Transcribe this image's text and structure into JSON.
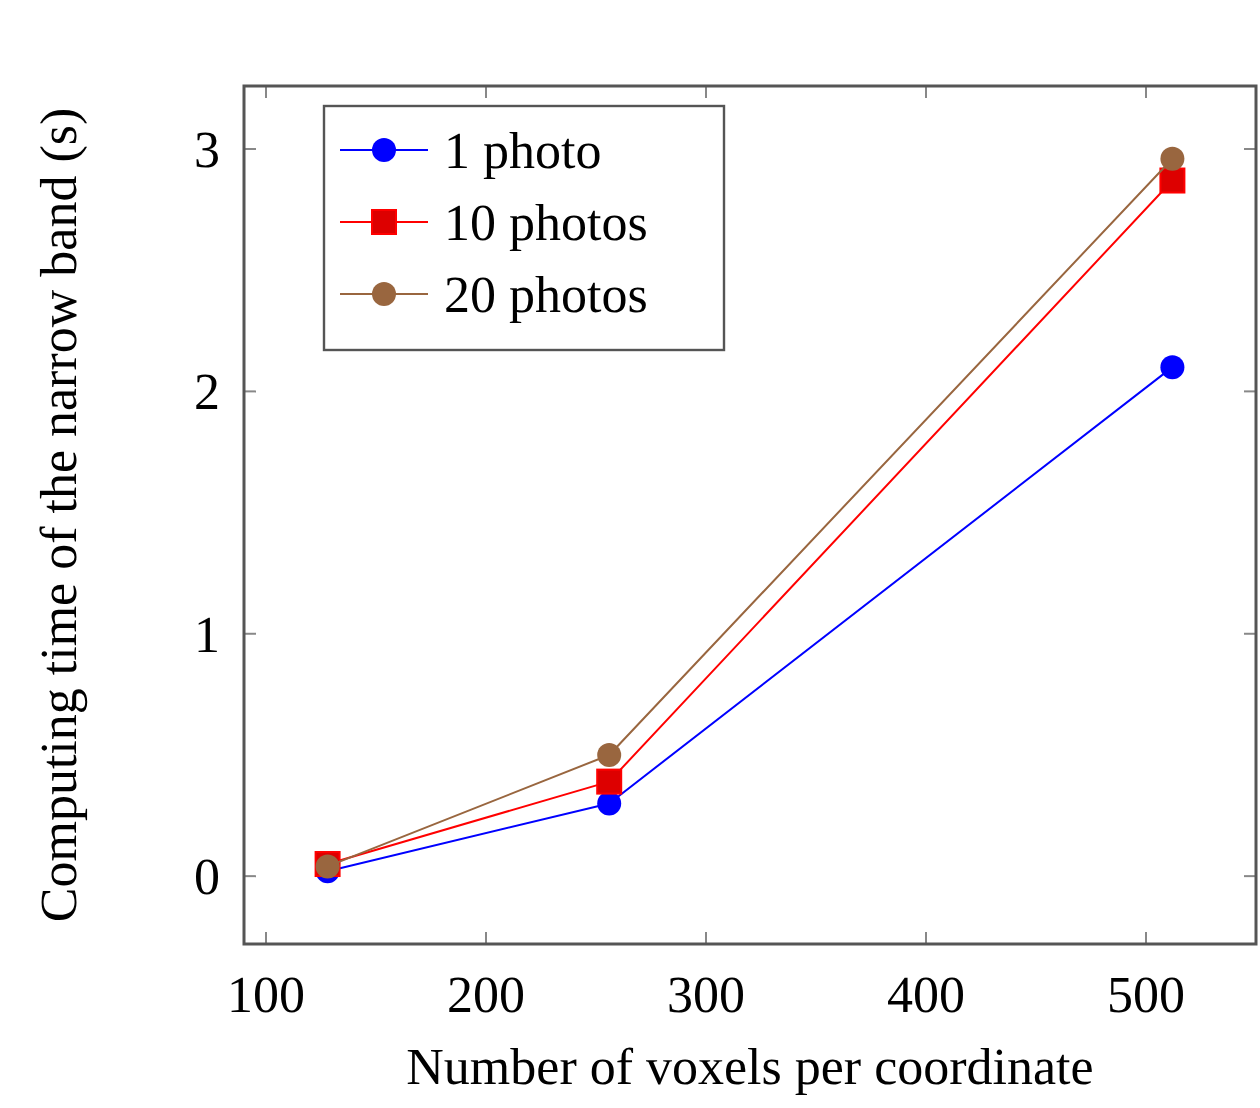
{
  "chart_data": {
    "type": "line",
    "xlabel": "Number of voxels per coordinate",
    "ylabel": "Computing time of the narrow band (s)",
    "x": [
      128,
      256,
      512
    ],
    "series": [
      {
        "name": "1 photo",
        "color": "#0000ff",
        "values": [
          0.02,
          0.3,
          2.1
        ],
        "marker": "circle"
      },
      {
        "name": "10 photos",
        "color": "#ff0000",
        "values": [
          0.05,
          0.39,
          2.87
        ],
        "marker": "square"
      },
      {
        "name": "20 photos",
        "color": "#99663f",
        "values": [
          0.04,
          0.5,
          2.96
        ],
        "marker": "circle"
      }
    ],
    "xlim": [
      90,
      550
    ],
    "ylim": [
      -0.28,
      3.26
    ],
    "xticks": [
      100,
      200,
      300,
      400,
      500
    ],
    "yticks": [
      0,
      1,
      2,
      3
    ],
    "grid": false,
    "legend": "top left"
  }
}
